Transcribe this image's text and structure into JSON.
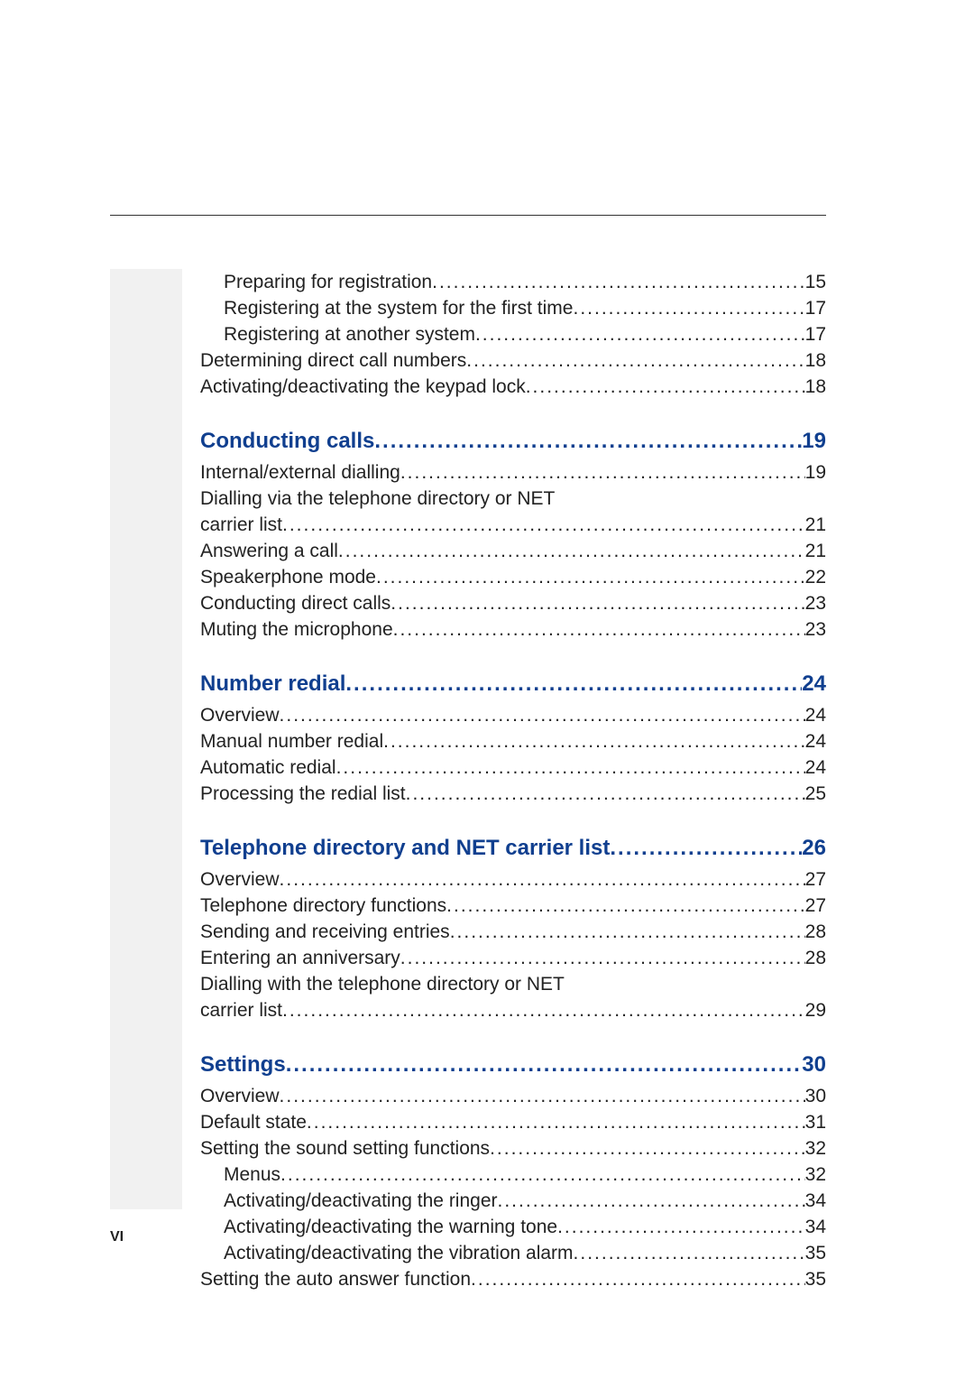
{
  "leader": "................................................................................................................",
  "top": [
    {
      "indent": 1,
      "text": "Preparing for registration ",
      "page": "15"
    },
    {
      "indent": 1,
      "text": "Registering at the system for the first time",
      "page": "17"
    },
    {
      "indent": 1,
      "text": "Registering at another system",
      "page": "17"
    },
    {
      "indent": 0,
      "text": "Determining direct call numbers ",
      "page": "18"
    },
    {
      "indent": 0,
      "text": "Activating/deactivating the keypad lock",
      "page": "18"
    }
  ],
  "sections": [
    {
      "title": "Conducting calls ",
      "page": "19",
      "items": [
        {
          "indent": 0,
          "text": "Internal/external dialling",
          "page": "19"
        },
        {
          "indent": 0,
          "text": "Dialling via the telephone directory or NET",
          "page": "",
          "nowrap_page": true
        },
        {
          "indent": 0,
          "text": "carrier list ",
          "page": "21"
        },
        {
          "indent": 0,
          "text": "Answering a call ",
          "page": "21"
        },
        {
          "indent": 0,
          "text": "Speakerphone mode ",
          "page": "22"
        },
        {
          "indent": 0,
          "text": "Conducting direct calls ",
          "page": "23"
        },
        {
          "indent": 0,
          "text": "Muting the microphone ",
          "page": "23"
        }
      ]
    },
    {
      "title": "Number redial",
      "page": "24",
      "items": [
        {
          "indent": 0,
          "text": "Overview ",
          "page": "24"
        },
        {
          "indent": 0,
          "text": "Manual number redial",
          "page": "24"
        },
        {
          "indent": 0,
          "text": "Automatic redial",
          "page": "24"
        },
        {
          "indent": 0,
          "text": "Processing the redial list",
          "page": "25"
        }
      ]
    },
    {
      "title": "Telephone directory and NET carrier list",
      "page": "26",
      "items": [
        {
          "indent": 0,
          "text": "Overview ",
          "page": "27"
        },
        {
          "indent": 0,
          "text": "Telephone directory functions ",
          "page": "27"
        },
        {
          "indent": 0,
          "text": "Sending and receiving entries ",
          "page": "28"
        },
        {
          "indent": 0,
          "text": "Entering an anniversary ",
          "page": "28"
        },
        {
          "indent": 0,
          "text": "Dialling with the telephone directory or NET",
          "page": "",
          "nowrap_page": true
        },
        {
          "indent": 0,
          "text": "carrier list ",
          "page": "29"
        }
      ]
    },
    {
      "title": "Settings ",
      "page": "30",
      "items": [
        {
          "indent": 0,
          "text": "Overview ",
          "page": "30"
        },
        {
          "indent": 0,
          "text": "Default state ",
          "page": "31"
        },
        {
          "indent": 0,
          "text": "Setting the sound setting functions ",
          "page": "32"
        },
        {
          "indent": 1,
          "text": "Menus",
          "page": "32"
        },
        {
          "indent": 1,
          "text": "Activating/deactivating the ringer",
          "page": "34"
        },
        {
          "indent": 1,
          "text": "Activating/deactivating the warning tone",
          "page": "34"
        },
        {
          "indent": 1,
          "text": "Activating/deactivating the vibration alarm ",
          "page": "35"
        },
        {
          "indent": 0,
          "text": "Setting the auto answer function ",
          "page": "35"
        }
      ]
    }
  ],
  "footer": "VI"
}
